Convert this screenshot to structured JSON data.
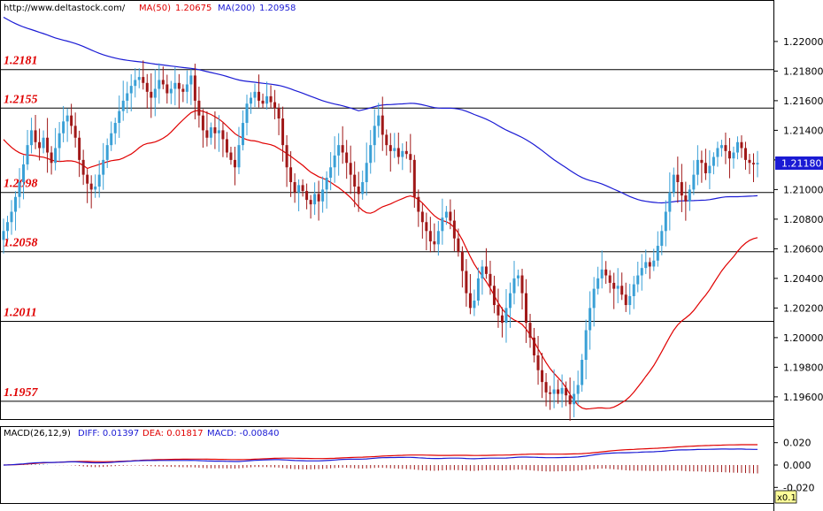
{
  "header": {
    "site": "http://www.deltastock.com/",
    "ma50_label": "MA(50)",
    "ma50_value": "1.20675",
    "ma200_label": "MA(200)",
    "ma200_value": "1.20958"
  },
  "macd_header": {
    "label": "MACD(26,12,9)",
    "diff_label": "DIFF: 0.01397",
    "dea_label": "DEA: 0.01817",
    "macd_label": "MACD: -0.00840"
  },
  "current_price": "1.21180",
  "scale_box": "x0.1",
  "colors": {
    "ma50": "#e00000",
    "ma200": "#1a1ad4",
    "bull": "#3aa0d6",
    "bear": "#a01818",
    "level_text": "#e00000",
    "price_badge": "#1a1ad4"
  },
  "chart_data": [
    {
      "type": "candlestick",
      "title": "",
      "series": [
        {
          "name": "MA(50)"
        },
        {
          "name": "MA(200)"
        }
      ],
      "ylim": [
        1.1945,
        1.2228
      ],
      "yticks": [
        "1.22000",
        "1.21800",
        "1.21600",
        "1.21400",
        "1.21200",
        "1.21000",
        "1.20800",
        "1.20600",
        "1.20400",
        "1.20200",
        "1.20000",
        "1.19800",
        "1.19600"
      ],
      "levels": [
        "1.2181",
        "1.2155",
        "1.2098",
        "1.2058",
        "1.2011",
        "1.1957"
      ],
      "closes": [
        1.2072,
        1.2078,
        1.2085,
        1.2095,
        1.2105,
        1.2117,
        1.213,
        1.214,
        1.2132,
        1.2128,
        1.2135,
        1.2125,
        1.2118,
        1.2128,
        1.2138,
        1.2146,
        1.215,
        1.2143,
        1.2135,
        1.212,
        1.211,
        1.2104,
        1.21,
        1.2102,
        1.211,
        1.212,
        1.213,
        1.2138,
        1.2145,
        1.2153,
        1.216,
        1.2165,
        1.217,
        1.2174,
        1.2176,
        1.2172,
        1.2166,
        1.2162,
        1.2168,
        1.2174,
        1.2171,
        1.2165,
        1.2168,
        1.2172,
        1.2168,
        1.2166,
        1.2171,
        1.2177,
        1.216,
        1.215,
        1.214,
        1.2135,
        1.2142,
        1.2138,
        1.214,
        1.2134,
        1.2125,
        1.212,
        1.2115,
        1.213,
        1.2145,
        1.2158,
        1.2162,
        1.2166,
        1.216,
        1.2158,
        1.2163,
        1.2159,
        1.2155,
        1.2148,
        1.213,
        1.2115,
        1.2105,
        1.2098,
        1.2103,
        1.2099,
        1.2093,
        1.209,
        1.2097,
        1.2092,
        1.21,
        1.2108,
        1.2115,
        1.2123,
        1.213,
        1.2125,
        1.2118,
        1.211,
        1.2102,
        1.2097,
        1.2105,
        1.2118,
        1.213,
        1.2143,
        1.215,
        1.2137,
        1.213,
        1.2126,
        1.2128,
        1.2122,
        1.2126,
        1.2124,
        1.212,
        1.2095,
        1.2085,
        1.2078,
        1.2072,
        1.2065,
        1.2063,
        1.2072,
        1.2081,
        1.2085,
        1.2079,
        1.2067,
        1.2058,
        1.2045,
        1.203,
        1.202,
        1.2025,
        1.204,
        1.2048,
        1.2043,
        1.2035,
        1.2022,
        1.2015,
        1.201,
        1.202,
        1.203,
        1.204,
        1.2042,
        1.203,
        1.201,
        1.2,
        1.1988,
        1.1978,
        1.197,
        1.1963,
        1.1962,
        1.1965,
        1.1962,
        1.1966,
        1.1961,
        1.1955,
        1.1962,
        1.1968,
        1.1985,
        1.2005,
        1.202,
        1.2033,
        1.204,
        1.2046,
        1.2042,
        1.2037,
        1.2033,
        1.2035,
        1.2029,
        1.2022,
        1.2028,
        1.2036,
        1.2042,
        1.2047,
        1.2051,
        1.2048,
        1.2052,
        1.2062,
        1.2072,
        1.2085,
        1.2098,
        1.211,
        1.2105,
        1.2096,
        1.2092,
        1.21,
        1.211,
        1.212,
        1.2118,
        1.2111,
        1.2116,
        1.2122,
        1.2128,
        1.213,
        1.2126,
        1.2121,
        1.2125,
        1.2132,
        1.2128,
        1.212,
        1.2118,
        1.2117,
        1.2118
      ],
      "ma50_end": 1.20675,
      "ma200_end": 1.20958
    },
    {
      "type": "macd",
      "title": "",
      "series": [
        {
          "name": "DIFF"
        },
        {
          "name": "DEA"
        },
        {
          "name": "MACD"
        }
      ],
      "ylim": [
        -0.034,
        0.034
      ],
      "yticks": [
        "0.020",
        "0.000",
        "-0.020"
      ],
      "diff_end": 0.01397,
      "dea_end": 0.01817,
      "macd_end": -0.0084
    }
  ]
}
